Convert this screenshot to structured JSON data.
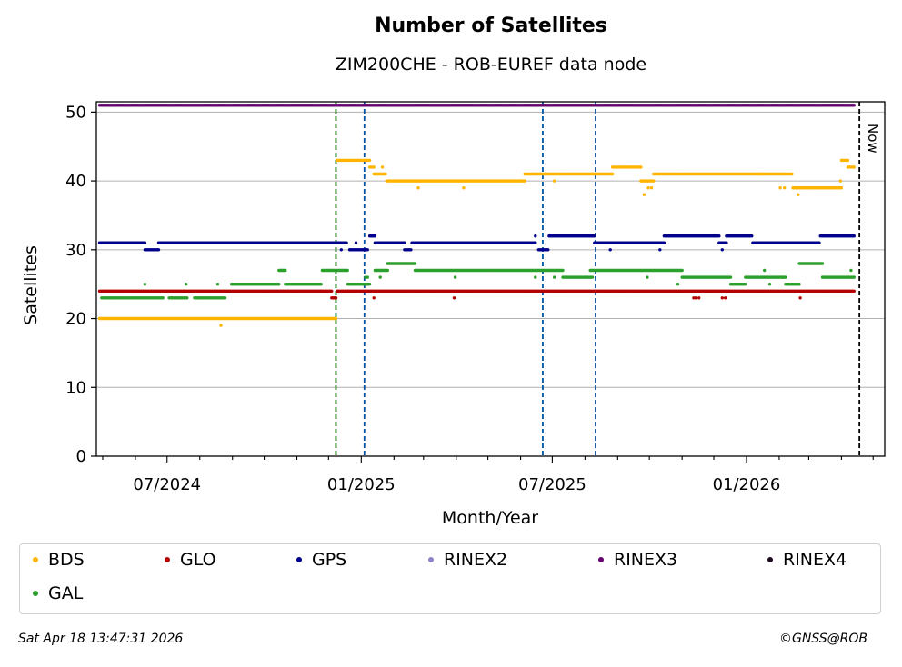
{
  "chart_data": {
    "type": "scatter",
    "title": "Number of Satellites",
    "subtitle": "ZIM200CHE - ROB-EUREF data node",
    "xlabel": "Month/Year",
    "ylabel": "Satellites",
    "x_ticks": [
      "07/2024",
      "01/2025",
      "07/2025",
      "01/2026"
    ],
    "y_ticks": [
      0,
      10,
      20,
      30,
      40,
      50
    ],
    "ylim": [
      0,
      51.5
    ],
    "xlim": [
      "2024-04-25",
      "2026-05-12"
    ],
    "grid": "horizontal",
    "now_label": "Now",
    "now_date": "2026-04-18",
    "vlines": [
      {
        "date": "2024-12-08",
        "color": "#006400"
      },
      {
        "date": "2025-01-04",
        "color": "#0055aa"
      },
      {
        "date": "2025-06-22",
        "color": "#0055aa"
      },
      {
        "date": "2025-08-11",
        "color": "#0055aa"
      }
    ],
    "series": [
      {
        "name": "BDS",
        "color": "#ffb400",
        "segments": [
          {
            "from": "2024-04-28",
            "to": "2024-12-08",
            "value": 20
          },
          {
            "from": "2024-12-09",
            "to": "2025-01-09",
            "value": 43
          },
          {
            "from": "2025-01-09",
            "to": "2025-01-13",
            "value": 42
          },
          {
            "from": "2025-01-13",
            "to": "2025-01-24",
            "value": 41
          },
          {
            "from": "2025-01-25",
            "to": "2025-06-05",
            "value": 40
          },
          {
            "from": "2025-06-05",
            "to": "2025-08-27",
            "value": 41
          },
          {
            "from": "2025-08-27",
            "to": "2025-09-23",
            "value": 42
          },
          {
            "from": "2025-09-23",
            "to": "2025-10-05",
            "value": 40
          },
          {
            "from": "2025-10-05",
            "to": "2026-01-17",
            "value": 41
          },
          {
            "from": "2026-01-17",
            "to": "2026-02-13",
            "value": 41
          },
          {
            "from": "2026-02-14",
            "to": "2026-04-01",
            "value": 39
          },
          {
            "from": "2026-04-01",
            "to": "2026-04-07",
            "value": 43
          },
          {
            "from": "2026-04-07",
            "to": "2026-04-13",
            "value": 42
          }
        ],
        "outliers": [
          {
            "date": "2024-08-21",
            "value": 19
          },
          {
            "date": "2025-01-21",
            "value": 42
          },
          {
            "date": "2025-02-24",
            "value": 39
          },
          {
            "date": "2025-04-08",
            "value": 39
          },
          {
            "date": "2025-07-03",
            "value": 40
          },
          {
            "date": "2025-09-26",
            "value": 38
          },
          {
            "date": "2025-09-30",
            "value": 39
          },
          {
            "date": "2025-10-03",
            "value": 39
          },
          {
            "date": "2026-02-02",
            "value": 39
          },
          {
            "date": "2026-02-06",
            "value": 39
          },
          {
            "date": "2026-02-19",
            "value": 38
          },
          {
            "date": "2026-03-31",
            "value": 40
          }
        ]
      },
      {
        "name": "GLO",
        "color": "#b40000",
        "segments": [
          {
            "from": "2024-04-28",
            "to": "2024-12-04",
            "value": 24
          },
          {
            "from": "2024-12-04",
            "to": "2024-12-08",
            "value": 23
          },
          {
            "from": "2024-12-09",
            "to": "2026-04-13",
            "value": 24
          }
        ],
        "outliers": [
          {
            "date": "2025-01-13",
            "value": 23
          },
          {
            "date": "2025-03-30",
            "value": 23
          },
          {
            "date": "2025-11-12",
            "value": 23
          },
          {
            "date": "2025-11-14",
            "value": 23
          },
          {
            "date": "2025-11-17",
            "value": 23
          },
          {
            "date": "2025-12-09",
            "value": 23
          },
          {
            "date": "2025-12-12",
            "value": 23
          },
          {
            "date": "2026-02-21",
            "value": 23
          }
        ]
      },
      {
        "name": "GPS",
        "color": "#00008c",
        "segments": [
          {
            "from": "2024-04-28",
            "to": "2024-06-10",
            "value": 31
          },
          {
            "from": "2024-06-10",
            "to": "2024-06-23",
            "value": 30
          },
          {
            "from": "2024-06-23",
            "to": "2024-12-18",
            "value": 31
          },
          {
            "from": "2024-12-21",
            "to": "2025-01-07",
            "value": 30
          },
          {
            "from": "2025-01-09",
            "to": "2025-01-14",
            "value": 32
          },
          {
            "from": "2025-01-14",
            "to": "2025-02-11",
            "value": 31
          },
          {
            "from": "2025-02-11",
            "to": "2025-02-17",
            "value": 30
          },
          {
            "from": "2025-02-18",
            "to": "2025-06-15",
            "value": 31
          },
          {
            "from": "2025-06-18",
            "to": "2025-06-27",
            "value": 30
          },
          {
            "from": "2025-06-28",
            "to": "2025-08-10",
            "value": 32
          },
          {
            "from": "2025-08-10",
            "to": "2025-08-26",
            "value": 31
          },
          {
            "from": "2025-08-27",
            "to": "2025-10-15",
            "value": 31
          },
          {
            "from": "2025-10-15",
            "to": "2025-12-06",
            "value": 32
          },
          {
            "from": "2025-12-06",
            "to": "2025-12-13",
            "value": 31
          },
          {
            "from": "2025-12-13",
            "to": "2026-01-06",
            "value": 32
          },
          {
            "from": "2026-01-07",
            "to": "2026-03-11",
            "value": 31
          },
          {
            "from": "2026-03-12",
            "to": "2026-04-13",
            "value": 32
          }
        ],
        "outliers": [
          {
            "date": "2024-12-21",
            "value": 30
          },
          {
            "date": "2024-12-10",
            "value": 31
          },
          {
            "date": "2024-12-13",
            "value": 30
          },
          {
            "date": "2024-12-27",
            "value": 31
          },
          {
            "date": "2025-06-15",
            "value": 32
          },
          {
            "date": "2025-08-25",
            "value": 30
          },
          {
            "date": "2025-10-11",
            "value": 30
          },
          {
            "date": "2025-12-09",
            "value": 30
          }
        ]
      },
      {
        "name": "RINEX2",
        "color": "#8c82c8",
        "segments": [],
        "outliers": []
      },
      {
        "name": "RINEX3",
        "color": "#64006e",
        "segments": [
          {
            "from": "2024-04-28",
            "to": "2026-04-13",
            "value": 51
          }
        ],
        "outliers": []
      },
      {
        "name": "RINEX4",
        "color": "#1e0a1e",
        "segments": [],
        "outliers": []
      },
      {
        "name": "GAL",
        "color": "#2ca02c",
        "segments": [
          {
            "from": "2024-04-30",
            "to": "2024-06-27",
            "value": 23
          },
          {
            "from": "2024-07-03",
            "to": "2024-07-20",
            "value": 23
          },
          {
            "from": "2024-07-27",
            "to": "2024-08-25",
            "value": 23
          },
          {
            "from": "2024-08-31",
            "to": "2024-10-15",
            "value": 25
          },
          {
            "from": "2024-10-15",
            "to": "2024-10-21",
            "value": 27
          },
          {
            "from": "2024-10-21",
            "to": "2024-11-24",
            "value": 25
          },
          {
            "from": "2024-11-25",
            "to": "2024-12-07",
            "value": 27
          },
          {
            "from": "2024-12-09",
            "to": "2024-12-19",
            "value": 27
          },
          {
            "from": "2024-12-19",
            "to": "2025-01-09",
            "value": 25
          },
          {
            "from": "2025-01-14",
            "to": "2025-01-26",
            "value": 27
          },
          {
            "from": "2025-01-26",
            "to": "2025-02-21",
            "value": 28
          },
          {
            "from": "2025-02-21",
            "to": "2025-07-11",
            "value": 27
          },
          {
            "from": "2025-07-11",
            "to": "2025-08-08",
            "value": 26
          },
          {
            "from": "2025-08-06",
            "to": "2025-11-01",
            "value": 27
          },
          {
            "from": "2025-11-01",
            "to": "2025-12-17",
            "value": 26
          },
          {
            "from": "2025-12-17",
            "to": "2025-12-31",
            "value": 25
          },
          {
            "from": "2025-12-31",
            "to": "2026-02-07",
            "value": 26
          },
          {
            "from": "2026-02-07",
            "to": "2026-02-20",
            "value": 25
          },
          {
            "from": "2026-02-20",
            "to": "2026-03-14",
            "value": 28
          },
          {
            "from": "2026-03-14",
            "to": "2026-04-13",
            "value": 26
          }
        ],
        "outliers": [
          {
            "date": "2024-06-10",
            "value": 25
          },
          {
            "date": "2024-06-27",
            "value": 23
          },
          {
            "date": "2024-07-19",
            "value": 25
          },
          {
            "date": "2024-08-18",
            "value": 25
          },
          {
            "date": "2025-01-05",
            "value": 26
          },
          {
            "date": "2025-01-07",
            "value": 26
          },
          {
            "date": "2025-01-19",
            "value": 26
          },
          {
            "date": "2025-03-31",
            "value": 26
          },
          {
            "date": "2025-06-15",
            "value": 26
          },
          {
            "date": "2025-07-03",
            "value": 26
          },
          {
            "date": "2025-09-29",
            "value": 26
          },
          {
            "date": "2025-10-28",
            "value": 25
          },
          {
            "date": "2026-01-18",
            "value": 27
          },
          {
            "date": "2026-01-23",
            "value": 25
          },
          {
            "date": "2026-02-04",
            "value": 26
          },
          {
            "date": "2026-04-10",
            "value": 27
          }
        ]
      }
    ],
    "legend_placement": "bottom"
  },
  "legend": {
    "items": [
      {
        "label": "BDS",
        "color": "#ffb400"
      },
      {
        "label": "GLO",
        "color": "#b40000"
      },
      {
        "label": "GPS",
        "color": "#00008c"
      },
      {
        "label": "RINEX2",
        "color": "#8c82c8"
      },
      {
        "label": "RINEX3",
        "color": "#64006e"
      },
      {
        "label": "RINEX4",
        "color": "#1e0a1e"
      },
      {
        "label": "GAL",
        "color": "#2ca02c"
      }
    ]
  },
  "footer": {
    "timestamp": "Sat Apr 18 13:47:31 2026",
    "copyright": "©GNSS@ROB"
  }
}
